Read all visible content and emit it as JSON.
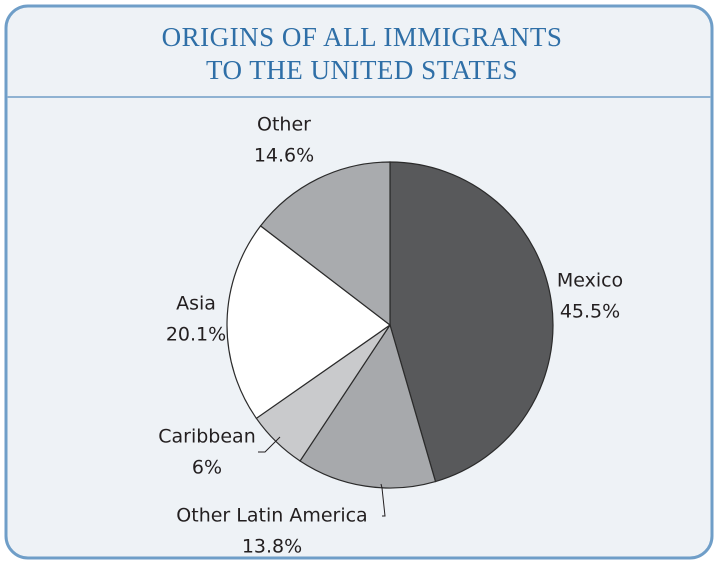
{
  "chart_data": {
    "type": "pie",
    "title": [
      "ORIGINS OF ALL IMMIGRANTS",
      "TO THE UNITED STATES"
    ],
    "categories": [
      "Mexico",
      "Other Latin America",
      "Caribbean",
      "Asia",
      "Other"
    ],
    "values": [
      45.5,
      13.8,
      6,
      20.1,
      14.6
    ],
    "value_labels": [
      "45.5%",
      "13.8%",
      "6%",
      "20.1%",
      "14.6%"
    ],
    "colors": [
      "#58595b",
      "#a7a9ac",
      "#c9cacc",
      "#ffffff",
      "#a9abae"
    ]
  }
}
